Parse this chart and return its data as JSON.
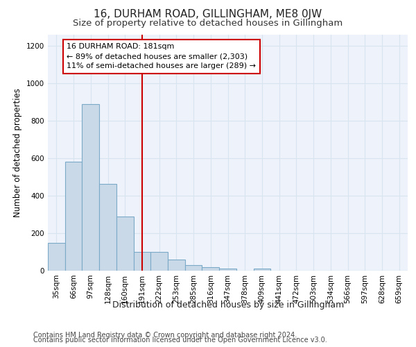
{
  "title": "16, DURHAM ROAD, GILLINGHAM, ME8 0JW",
  "subtitle": "Size of property relative to detached houses in Gillingham",
  "xlabel": "Distribution of detached houses by size in Gillingham",
  "ylabel": "Number of detached properties",
  "categories": [
    "35sqm",
    "66sqm",
    "97sqm",
    "128sqm",
    "160sqm",
    "191sqm",
    "222sqm",
    "253sqm",
    "285sqm",
    "316sqm",
    "347sqm",
    "378sqm",
    "409sqm",
    "441sqm",
    "472sqm",
    "503sqm",
    "534sqm",
    "566sqm",
    "597sqm",
    "628sqm",
    "659sqm"
  ],
  "values": [
    150,
    580,
    890,
    465,
    290,
    100,
    100,
    60,
    30,
    20,
    10,
    0,
    10,
    0,
    0,
    0,
    0,
    0,
    0,
    0,
    0
  ],
  "bar_color": "#c9d9e8",
  "bar_edge_color": "#7aaac8",
  "vline_index": 5,
  "vline_color": "#cc0000",
  "annotation_text": "16 DURHAM ROAD: 181sqm\n← 89% of detached houses are smaller (2,303)\n11% of semi-detached houses are larger (289) →",
  "annotation_box_facecolor": "#ffffff",
  "annotation_box_edgecolor": "#cc0000",
  "ylim": [
    0,
    1260
  ],
  "yticks": [
    0,
    200,
    400,
    600,
    800,
    1000,
    1200
  ],
  "grid_color": "#d8e4f0",
  "background_color": "#eef2fa",
  "footer_line1": "Contains HM Land Registry data © Crown copyright and database right 2024.",
  "footer_line2": "Contains public sector information licensed under the Open Government Licence v3.0.",
  "title_fontsize": 11,
  "subtitle_fontsize": 9.5,
  "xlabel_fontsize": 9,
  "ylabel_fontsize": 8.5,
  "tick_fontsize": 7.5,
  "annotation_fontsize": 8,
  "footer_fontsize": 7
}
